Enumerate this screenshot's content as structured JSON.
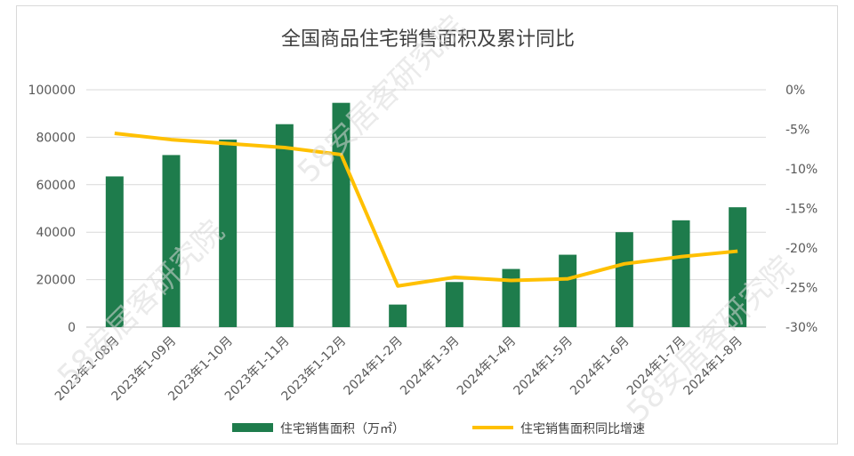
{
  "chart_data": {
    "type": "bar+line",
    "title": "全国商品住宅销售面积及累计同比",
    "categories": [
      "2023年1-08月",
      "2023年1-09月",
      "2023年1-10月",
      "2023年1-11月",
      "2023年1-12月",
      "2024年1-2月",
      "2024年1-3月",
      "2024年1-4月",
      "2024年1-5月",
      "2024年1-6月",
      "2024年1-7月",
      "2024年1-8月"
    ],
    "series": [
      {
        "name": "住宅销售面积（万㎡）",
        "type": "bar",
        "axis": "left",
        "color": "#1e7c4c",
        "values": [
          63500,
          72500,
          79000,
          85500,
          94500,
          9500,
          19000,
          24500,
          30500,
          40000,
          45000,
          50500
        ]
      },
      {
        "name": "住宅销售面积同比增速",
        "type": "line",
        "axis": "right",
        "color": "#ffc000",
        "values": [
          -5.5,
          -6.3,
          -6.8,
          -7.3,
          -8.2,
          -24.8,
          -23.7,
          -24.1,
          -23.9,
          -22.0,
          -21.1,
          -20.4
        ]
      }
    ],
    "y_left": {
      "min": 0,
      "max": 100000,
      "ticks": [
        "0",
        "20000",
        "40000",
        "60000",
        "80000",
        "100000"
      ]
    },
    "y_right": {
      "min": -30,
      "max": 0,
      "ticks": [
        "0%",
        "-5%",
        "-10%",
        "-15%",
        "-20%",
        "-25%",
        "-30%"
      ]
    },
    "grid": true,
    "legend_position": "bottom",
    "watermark": "58安居客研究院"
  }
}
